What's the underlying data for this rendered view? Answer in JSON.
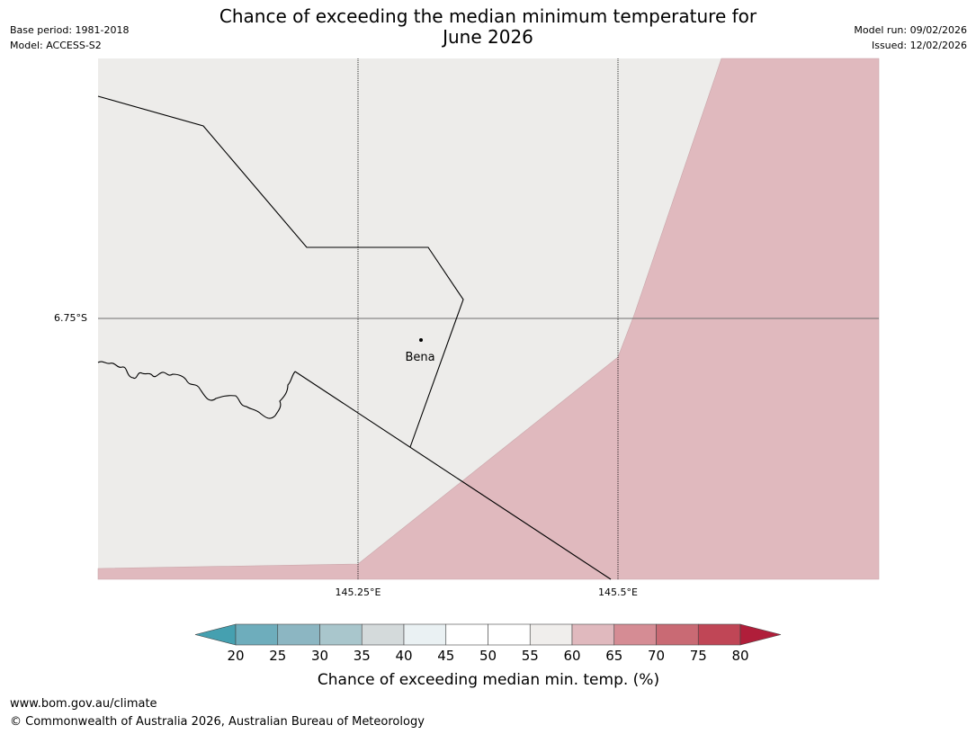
{
  "header": {
    "title_line1": "Chance of exceeding the median minimum temperature for",
    "title_line2": "June 2026",
    "base_period": "Base period: 1981-2018",
    "model": "Model: ACCESS-S2",
    "model_run": "Model run: 09/02/2026",
    "issued": "Issued: 12/02/2026"
  },
  "map": {
    "lat_label": "6.75°S",
    "lon_labels": [
      "145.25°E",
      "145.5°E"
    ],
    "place": {
      "name": "Bena"
    },
    "colors": {
      "background": "#edecea",
      "region_60_65": "#e0b9be",
      "border": "#000000"
    }
  },
  "colorbar": {
    "tick_labels": [
      "20",
      "25",
      "30",
      "35",
      "40",
      "45",
      "50",
      "55",
      "60",
      "65",
      "70",
      "75",
      "80"
    ],
    "colors": [
      "#45a0b0",
      "#6eadbc",
      "#8cb6c2",
      "#a9c6cc",
      "#d4dadb",
      "#eaf1f3",
      "#ffffff",
      "#ffffff",
      "#f0eeec",
      "#e0b9be",
      "#d58c94",
      "#c96a74",
      "#c04656",
      "#b01e3a"
    ],
    "title": "Chance of exceeding median min. temp. (%)"
  },
  "footer": {
    "url": "www.bom.gov.au/climate",
    "copyright": "© Commonwealth of Australia 2026, Australian Bureau of Meteorology"
  }
}
